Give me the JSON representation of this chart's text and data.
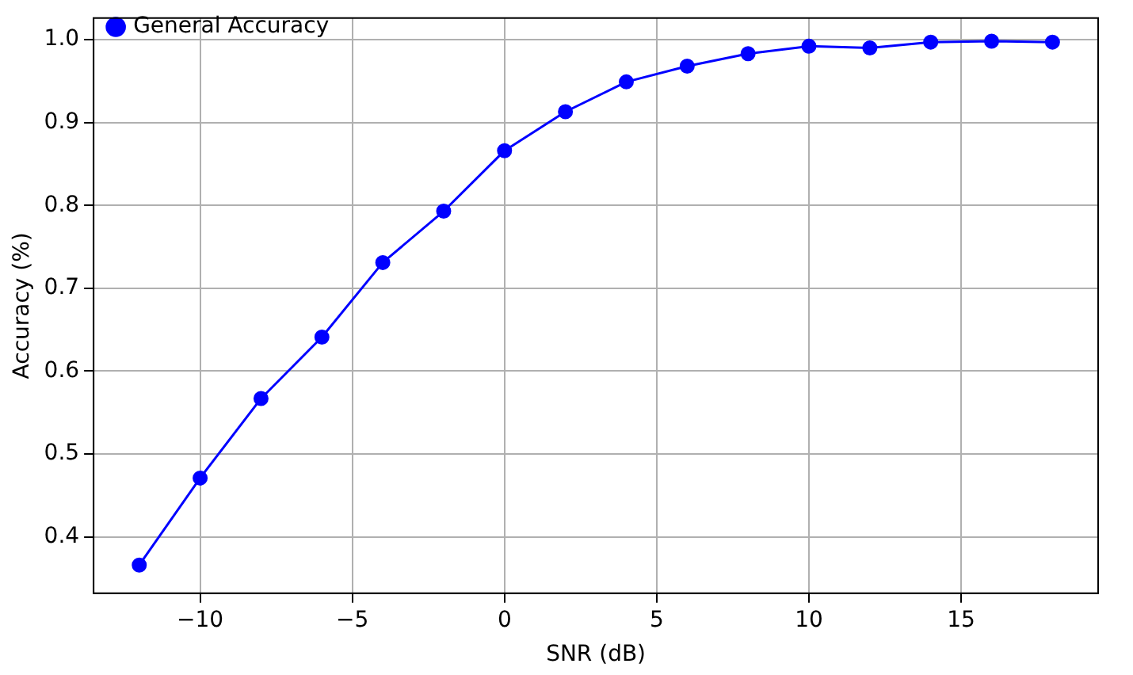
{
  "chart_data": {
    "type": "line",
    "xlabel": "SNR (dB)",
    "ylabel": "Accuracy (%)",
    "x": [
      -12,
      -10,
      -8,
      -6,
      -4,
      -2,
      0,
      2,
      4,
      6,
      8,
      10,
      12,
      14,
      16,
      18
    ],
    "series": [
      {
        "name": "General Accuracy",
        "color": "#0000ff",
        "values": [
          0.366,
          0.471,
          0.567,
          0.641,
          0.731,
          0.793,
          0.866,
          0.913,
          0.949,
          0.968,
          0.983,
          0.992,
          0.99,
          0.997,
          0.998,
          0.997
        ]
      }
    ],
    "xlim": [
      -13.5,
      19.5
    ],
    "ylim": [
      0.332,
      1.026
    ],
    "xticks": [
      {
        "value": -10,
        "label": "−10"
      },
      {
        "value": -5,
        "label": "−5"
      },
      0,
      5,
      10,
      15
    ],
    "yticks": [
      {
        "value": 0.4,
        "label": "0.4"
      },
      {
        "value": 0.5,
        "label": "0.5"
      },
      {
        "value": 0.6,
        "label": "0.6"
      },
      {
        "value": 0.7,
        "label": "0.7"
      },
      {
        "value": 0.8,
        "label": "0.8"
      },
      {
        "value": 0.9,
        "label": "0.9"
      },
      {
        "value": 1.0,
        "label": "1.0"
      }
    ],
    "grid": true,
    "legend": "top left",
    "marker": "circle",
    "line_style": "solid"
  }
}
